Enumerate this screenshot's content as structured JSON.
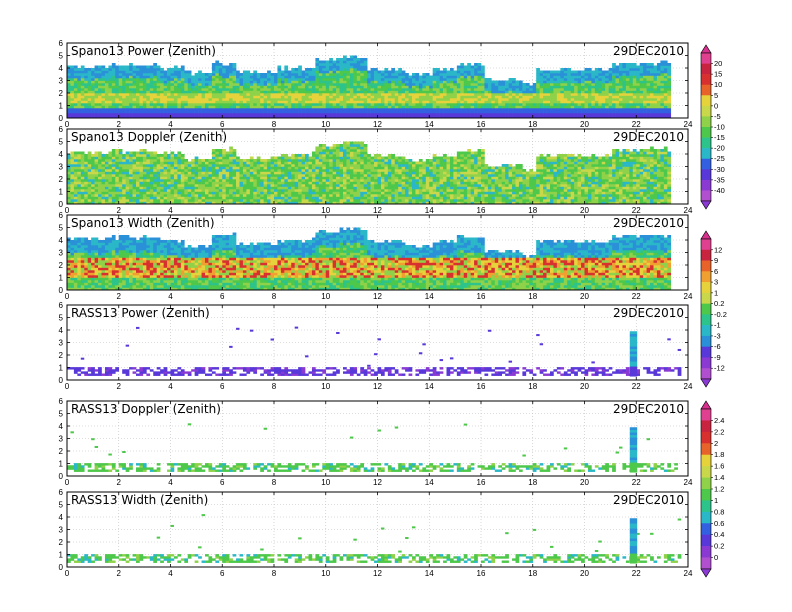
{
  "figure": {
    "date": "29DEC2010"
  },
  "colors": {
    "scale": [
      "#e04090",
      "#c9243f",
      "#d8302e",
      "#e8632a",
      "#f0a030",
      "#e6d23a",
      "#c8d84a",
      "#8fd24a",
      "#4ec84a",
      "#2cc48a",
      "#2ab8c8",
      "#2a90d8",
      "#3360e0",
      "#5838d8",
      "#8a3ad2",
      "#b050d0"
    ]
  },
  "colorbars": [
    {
      "ticks": [
        "20",
        "15",
        "10",
        "5",
        "0",
        "-5",
        "-10",
        "-15",
        "-20",
        "-25",
        "-30",
        "-35",
        "-40"
      ]
    },
    {
      "ticks": [
        "12",
        "9",
        "6",
        "3",
        "1",
        "0.2",
        "-0.2",
        "-1",
        "-3",
        "-6",
        "-9",
        "-12"
      ]
    },
    {
      "ticks": [
        "2.4",
        "2.2",
        "2",
        "1.8",
        "1.6",
        "1.4",
        "1.2",
        "1",
        "0.8",
        "0.6",
        "0.4",
        "0.2",
        "0"
      ]
    }
  ],
  "chart_data": [
    {
      "type": "heatmap",
      "title": "Spano13 Power (Zenith)",
      "date": "29DEC2010",
      "xlim": [
        0,
        24
      ],
      "ylim": [
        0,
        6
      ],
      "xticks": [
        "0",
        "2",
        "4",
        "6",
        "8",
        "10",
        "12",
        "14",
        "16",
        "18",
        "20",
        "22",
        "24"
      ],
      "yticks": [
        "0",
        "1",
        "2",
        "3",
        "4",
        "5",
        "6"
      ]
    },
    {
      "type": "heatmap",
      "title": "Spano13 Doppler (Zenith)",
      "date": "29DEC2010",
      "xlim": [
        0,
        24
      ],
      "ylim": [
        0,
        6
      ],
      "xticks": [
        "0",
        "2",
        "4",
        "6",
        "8",
        "10",
        "12",
        "14",
        "16",
        "18",
        "20",
        "22",
        "24"
      ],
      "yticks": [
        "0",
        "1",
        "2",
        "3",
        "4",
        "5",
        "6"
      ]
    },
    {
      "type": "heatmap",
      "title": "Spano13 Width (Zenith)",
      "date": "29DEC2010",
      "xlim": [
        0,
        24
      ],
      "ylim": [
        0,
        6
      ],
      "xticks": [
        "0",
        "2",
        "4",
        "6",
        "8",
        "10",
        "12",
        "14",
        "16",
        "18",
        "20",
        "22",
        "24"
      ],
      "yticks": [
        "0",
        "1",
        "2",
        "3",
        "4",
        "5",
        "6"
      ]
    },
    {
      "type": "heatmap",
      "title": "RASS13 Power (Zenith)",
      "date": "29DEC2010",
      "xlim": [
        0,
        24
      ],
      "ylim": [
        0,
        6
      ],
      "xticks": [
        "0",
        "2",
        "4",
        "6",
        "8",
        "10",
        "12",
        "14",
        "16",
        "18",
        "20",
        "22",
        "24"
      ],
      "yticks": [
        "0",
        "1",
        "2",
        "3",
        "4",
        "5",
        "6"
      ]
    },
    {
      "type": "heatmap",
      "title": "RASS13 Doppler (Zenith)",
      "date": "29DEC2010",
      "xlim": [
        0,
        24
      ],
      "ylim": [
        0,
        6
      ],
      "xticks": [
        "0",
        "2",
        "4",
        "6",
        "8",
        "10",
        "12",
        "14",
        "16",
        "18",
        "20",
        "22",
        "24"
      ],
      "yticks": [
        "0",
        "1",
        "2",
        "3",
        "4",
        "5",
        "6"
      ]
    },
    {
      "type": "heatmap",
      "title": "RASS13 Width (Zenith)",
      "date": "29DEC2010",
      "xlim": [
        0,
        24
      ],
      "ylim": [
        0,
        6
      ],
      "xticks": [
        "0",
        "2",
        "4",
        "6",
        "8",
        "10",
        "12",
        "14",
        "16",
        "18",
        "20",
        "22",
        "24"
      ],
      "yticks": [
        "0",
        "1",
        "2",
        "3",
        "4",
        "5",
        "6"
      ]
    }
  ]
}
